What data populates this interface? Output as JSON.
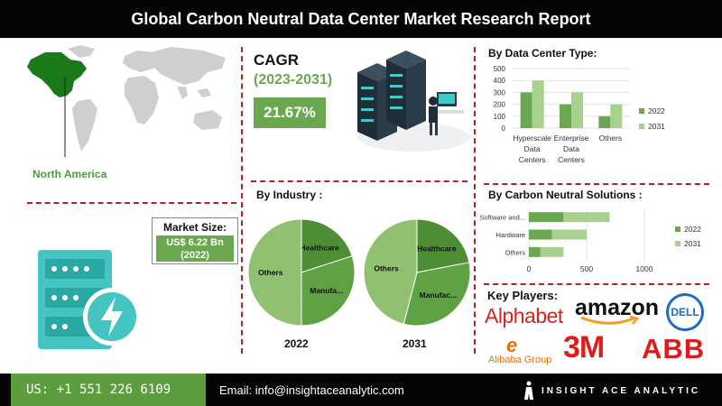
{
  "header": {
    "title": "Global Carbon Neutral Data Center Market Research Report"
  },
  "region": {
    "label": "North America",
    "highlight_color": "#1a7a1a"
  },
  "cagr": {
    "title": "CAGR",
    "years": "(2023-2031)",
    "value": "21.67%"
  },
  "market_size": {
    "title": "Market Size:",
    "value_line1": "US$ 6.22 Bn",
    "value_line2": "(2022)"
  },
  "colors": {
    "accent_green": "#6aa84f",
    "dark_green": "#4e8f36",
    "light_green": "#a9d18e",
    "divider_red": "#b52020"
  },
  "chart_data": [
    {
      "type": "bar",
      "title": "By Data Center Type:",
      "categories": [
        "Hyperscale Data Centers",
        "Enterprise Data Centers",
        "Others"
      ],
      "category_lines": [
        [
          "Hyperscale",
          "Data",
          "Centers"
        ],
        [
          "Enterprise",
          "Data",
          "Centers"
        ],
        [
          "Others"
        ]
      ],
      "series": [
        {
          "name": "2022",
          "values": [
            300,
            200,
            100
          ],
          "color": "#6aa84f"
        },
        {
          "name": "2031",
          "values": [
            400,
            300,
            200
          ],
          "color": "#a9d18e"
        }
      ],
      "ylim": [
        0,
        500
      ],
      "yticks": [
        0,
        100,
        200,
        300,
        400,
        500
      ],
      "legend": "right"
    },
    {
      "type": "bar",
      "orientation": "horizontal",
      "stacked": true,
      "title": "By Carbon Neutral Solutions :",
      "categories": [
        "Software and...",
        "Hardware",
        "Others"
      ],
      "series": [
        {
          "name": "2022",
          "values": [
            300,
            200,
            100
          ],
          "color": "#6aa84f"
        },
        {
          "name": "2031",
          "values": [
            400,
            300,
            200
          ],
          "color": "#a9d18e"
        }
      ],
      "xlim": [
        0,
        1000
      ],
      "xticks": [
        0,
        500,
        1000
      ],
      "legend": "right"
    },
    {
      "type": "pie",
      "title": "By Industry :",
      "year_label": "2022",
      "slices": [
        {
          "label": "Healthcare",
          "value": 20,
          "color": "#4e8f36"
        },
        {
          "label": "Manufa...",
          "value": 30,
          "color": "#5ea244"
        },
        {
          "label": "Others",
          "value": 50,
          "color": "#8fc171"
        }
      ]
    },
    {
      "type": "pie",
      "year_label": "2031",
      "slices": [
        {
          "label": "Healthcare",
          "value": 22,
          "color": "#4e8f36"
        },
        {
          "label": "Manufac...",
          "value": 32,
          "color": "#5ea244"
        },
        {
          "label": "Others",
          "value": 46,
          "color": "#8fc171"
        }
      ]
    }
  ],
  "key_players": {
    "title": "Key Players:",
    "logos": [
      "Alphabet",
      "amazon",
      "DELL",
      "Alibaba Group",
      "3M",
      "ABB"
    ],
    "alibaba_mark": "e"
  },
  "footer": {
    "phone": "US: +1 551 226 6109",
    "email": "Email: info@insightaceanalytic.com",
    "brand": "INSIGHT ACE ANALYTIC"
  }
}
